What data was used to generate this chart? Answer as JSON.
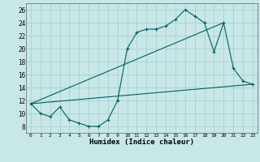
{
  "xlabel": "Humidex (Indice chaleur)",
  "bg_color": "#c8e8e8",
  "grid_color": "#a8d0d0",
  "line_color": "#006060",
  "xlim": [
    -0.5,
    23.5
  ],
  "ylim": [
    7.0,
    27.0
  ],
  "xticks": [
    0,
    1,
    2,
    3,
    4,
    5,
    6,
    7,
    8,
    9,
    10,
    11,
    12,
    13,
    14,
    15,
    16,
    17,
    18,
    19,
    20,
    21,
    22,
    23
  ],
  "yticks": [
    8,
    10,
    12,
    14,
    16,
    18,
    20,
    22,
    24,
    26
  ],
  "line1_x": [
    0,
    1,
    2,
    3,
    4,
    5,
    6,
    7,
    8,
    9,
    10,
    11,
    12,
    13,
    14,
    15,
    16,
    17,
    18,
    19,
    20,
    21,
    22,
    23
  ],
  "line1_y": [
    11.5,
    10.0,
    9.5,
    11.0,
    9.0,
    8.5,
    8.0,
    8.0,
    9.0,
    12.0,
    20.0,
    22.5,
    23.0,
    23.0,
    23.5,
    24.5,
    26.0,
    25.0,
    24.0,
    19.5,
    24.0,
    17.0,
    15.0,
    14.5
  ],
  "line2_x": [
    0,
    23
  ],
  "line2_y": [
    11.5,
    14.5
  ],
  "line3_x": [
    0,
    20
  ],
  "line3_y": [
    11.5,
    24.0
  ]
}
